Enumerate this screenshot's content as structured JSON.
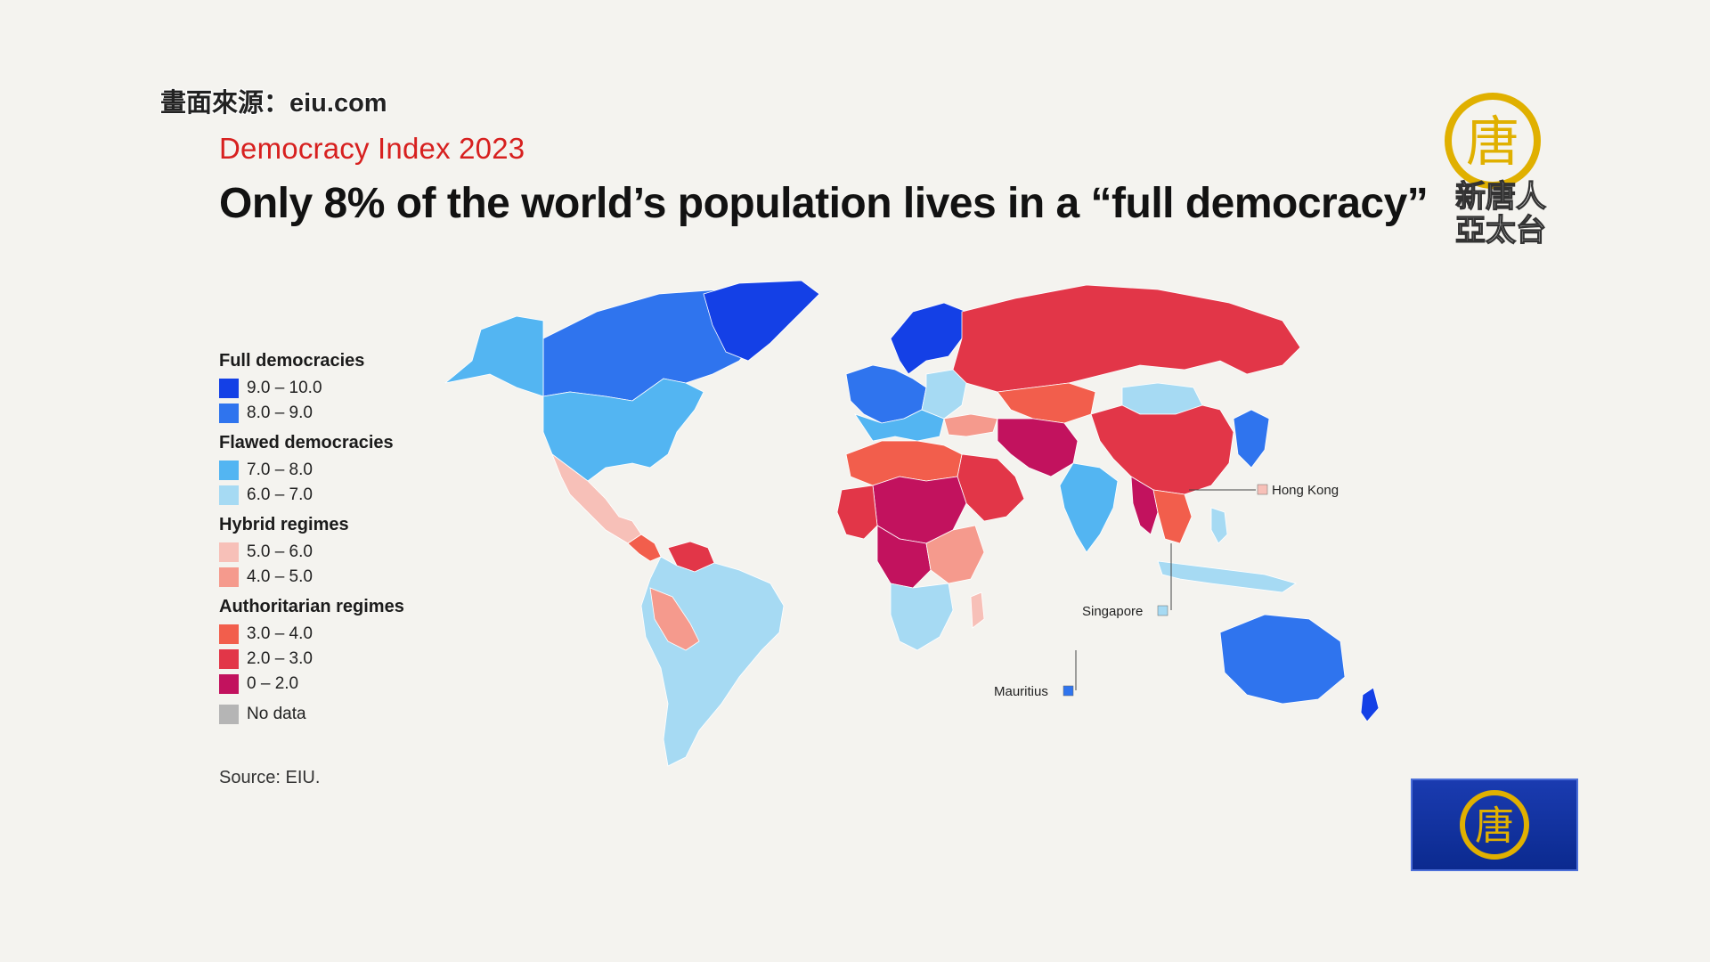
{
  "source_credit": "畫面來源：eiu.com",
  "kicker": "Democracy Index 2023",
  "headline": "Only 8% of the world’s population lives in a “full democracy”",
  "colors": {
    "c9_10": "#1440e6",
    "c8_9": "#2f74ee",
    "c7_8": "#53b5f2",
    "c6_7": "#a6daf3",
    "c5_6": "#f7c0b8",
    "c4_5": "#f59a8d",
    "c3_4": "#f25e4c",
    "c2_3": "#e23648",
    "c0_2": "#c2125e",
    "nodata": "#b5b5b5",
    "accent": "#d7201f"
  },
  "legend": {
    "full": {
      "title": "Full democracies",
      "items": [
        {
          "label": "9.0 – 10.0"
        },
        {
          "label": "8.0 – 9.0"
        }
      ]
    },
    "flawed": {
      "title": "Flawed democracies",
      "items": [
        {
          "label": "7.0 – 8.0"
        },
        {
          "label": "6.0 – 7.0"
        }
      ]
    },
    "hybrid": {
      "title": "Hybrid regimes",
      "items": [
        {
          "label": "5.0 – 6.0"
        },
        {
          "label": "4.0 – 5.0"
        }
      ]
    },
    "auth": {
      "title": "Authoritarian regimes",
      "items": [
        {
          "label": "3.0 – 4.0"
        },
        {
          "label": "2.0 – 3.0"
        },
        {
          "label": "0 – 2.0"
        }
      ]
    },
    "nodata": {
      "label": "No data"
    }
  },
  "callouts": {
    "hong_kong": "Hong Kong",
    "singapore": "Singapore",
    "mauritius": "Mauritius"
  },
  "footer_source": "Source: EIU.",
  "logo": {
    "glyph": "唐",
    "text_line1": "新唐人",
    "text_line2": "亞太台"
  }
}
